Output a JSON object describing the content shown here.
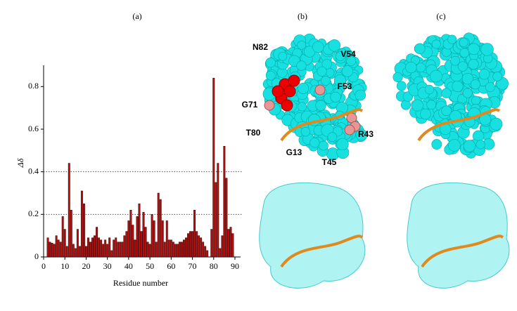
{
  "chart_data": {
    "type": "bar",
    "panel_label": "(a)",
    "xlabel": "Residue number",
    "ylabel": "Δδ",
    "x": [
      2,
      3,
      4,
      5,
      6,
      7,
      8,
      9,
      10,
      11,
      12,
      13,
      14,
      15,
      16,
      17,
      18,
      19,
      20,
      21,
      22,
      23,
      24,
      25,
      26,
      27,
      28,
      29,
      30,
      31,
      32,
      33,
      34,
      35,
      36,
      37,
      38,
      39,
      40,
      41,
      42,
      43,
      44,
      45,
      46,
      47,
      48,
      49,
      50,
      51,
      52,
      53,
      54,
      55,
      56,
      57,
      58,
      59,
      60,
      61,
      62,
      63,
      64,
      65,
      66,
      67,
      68,
      69,
      70,
      71,
      72,
      73,
      74,
      75,
      76,
      77,
      79,
      80,
      81,
      82,
      83,
      84,
      85,
      86,
      87,
      88,
      89
    ],
    "values": [
      0.09,
      0.07,
      0.065,
      0.06,
      0.1,
      0.08,
      0.07,
      0.19,
      0.13,
      0.05,
      0.44,
      0.22,
      0.06,
      0.04,
      0.13,
      0.05,
      0.31,
      0.25,
      0.05,
      0.09,
      0.07,
      0.09,
      0.1,
      0.14,
      0.09,
      0.08,
      0.06,
      0.08,
      0.06,
      0.09,
      0.03,
      0.08,
      0.09,
      0.07,
      0.07,
      0.07,
      0.1,
      0.12,
      0.17,
      0.22,
      0.15,
      0.08,
      0.19,
      0.25,
      0.12,
      0.21,
      0.14,
      0.07,
      0.06,
      0.2,
      0.17,
      0.07,
      0.3,
      0.27,
      0.17,
      0.07,
      0.17,
      0.08,
      0.08,
      0.07,
      0.06,
      0.06,
      0.07,
      0.07,
      0.08,
      0.09,
      0.11,
      0.12,
      0.12,
      0.22,
      0.12,
      0.1,
      0.09,
      0.07,
      0.05,
      0.03,
      0.13,
      0.84,
      0.35,
      0.44,
      0.04,
      0.1,
      0.52,
      0.37,
      0.13,
      0.14,
      0.11
    ],
    "color": "#b3100f",
    "xlim": [
      0,
      90
    ],
    "xticks": [
      0,
      10,
      20,
      30,
      40,
      50,
      60,
      70,
      80,
      90
    ],
    "ylim": [
      0,
      0.9
    ],
    "yticks": [
      0,
      0.2,
      0.4,
      0.6,
      0.8
    ],
    "hlines": [
      0.2,
      0.4
    ]
  },
  "structures": [
    {
      "label": "(b)",
      "residues": [
        "N82",
        "V54",
        "F53",
        "G71",
        "T80",
        "G13",
        "R43",
        "T45"
      ]
    },
    {
      "label": "(c)"
    }
  ]
}
